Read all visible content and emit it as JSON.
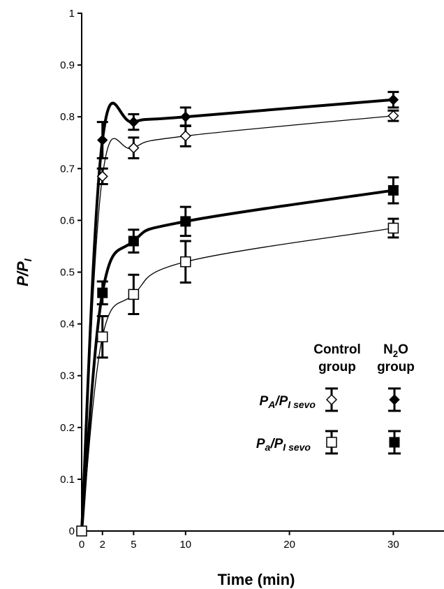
{
  "chart_data": {
    "type": "line",
    "xlabel": "Time (min)",
    "ylabel": "P/PI",
    "xlim": [
      0,
      35
    ],
    "ylim": [
      0,
      1
    ],
    "x_ticks": [
      0,
      2,
      5,
      10,
      20,
      30
    ],
    "y_ticks": [
      0,
      0.1,
      0.2,
      0.3,
      0.4,
      0.5,
      0.6,
      0.7,
      0.8,
      0.9,
      1
    ],
    "x_tick_labels": [
      "0",
      "2",
      "5",
      "10",
      "20",
      "30"
    ],
    "y_tick_labels": [
      "0",
      "0.1",
      "0.2",
      "0.3",
      "0.4",
      "0.5",
      "0.6",
      "0.7",
      "0.8",
      "0.9",
      "1"
    ],
    "grid": false,
    "legend_position": "bottom-right",
    "legend": {
      "column_headers": [
        [
          "Control",
          "group"
        ],
        [
          "N2O",
          "group"
        ]
      ],
      "row_labels": [
        "PA/PI sevo",
        "Pa/PI sevo"
      ]
    },
    "series": [
      {
        "name": "PA/PI sevo, N2O group",
        "marker": "filled-diamond",
        "line": "thick",
        "x": [
          0,
          2,
          5,
          10,
          30
        ],
        "y": [
          0,
          0.755,
          0.79,
          0.8,
          0.833
        ],
        "err": [
          0,
          0.035,
          0.015,
          0.018,
          0.015
        ]
      },
      {
        "name": "PA/PI sevo, Control group",
        "marker": "open-diamond",
        "line": "thin",
        "x": [
          0,
          2,
          5,
          10,
          30
        ],
        "y": [
          0,
          0.685,
          0.74,
          0.763,
          0.802
        ],
        "err": [
          0,
          0.015,
          0.02,
          0.02,
          0.01
        ]
      },
      {
        "name": "Pa/PI sevo, N2O group",
        "marker": "filled-square",
        "line": "thick",
        "x": [
          0,
          2,
          5,
          10,
          30
        ],
        "y": [
          0,
          0.46,
          0.56,
          0.598,
          0.658
        ],
        "err": [
          0,
          0.022,
          0.022,
          0.028,
          0.025
        ]
      },
      {
        "name": "Pa/PI sevo, Control group",
        "marker": "open-square",
        "line": "thin",
        "x": [
          0,
          2,
          5,
          10,
          30
        ],
        "y": [
          0,
          0.375,
          0.457,
          0.52,
          0.585
        ],
        "err": [
          0,
          0.04,
          0.038,
          0.04,
          0.018
        ]
      }
    ]
  }
}
